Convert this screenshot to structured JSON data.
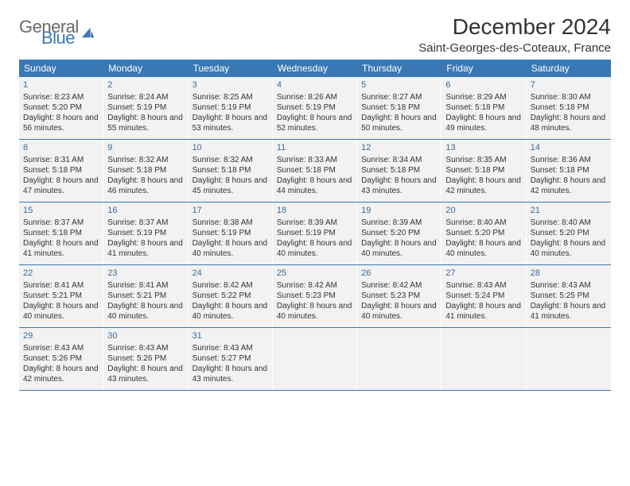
{
  "logo": {
    "general": "General",
    "blue": "Blue"
  },
  "title": "December 2024",
  "location": "Saint-Georges-des-Coteaux, France",
  "weekdays": [
    "Sunday",
    "Monday",
    "Tuesday",
    "Wednesday",
    "Thursday",
    "Friday",
    "Saturday"
  ],
  "header_bg": "#3a78b5",
  "cell_bg": "#f2f2f2",
  "weeks": [
    [
      {
        "n": "1",
        "sr": "8:23 AM",
        "ss": "5:20 PM",
        "dh": "8",
        "dm": "56"
      },
      {
        "n": "2",
        "sr": "8:24 AM",
        "ss": "5:19 PM",
        "dh": "8",
        "dm": "55"
      },
      {
        "n": "3",
        "sr": "8:25 AM",
        "ss": "5:19 PM",
        "dh": "8",
        "dm": "53"
      },
      {
        "n": "4",
        "sr": "8:26 AM",
        "ss": "5:19 PM",
        "dh": "8",
        "dm": "52"
      },
      {
        "n": "5",
        "sr": "8:27 AM",
        "ss": "5:18 PM",
        "dh": "8",
        "dm": "50"
      },
      {
        "n": "6",
        "sr": "8:29 AM",
        "ss": "5:18 PM",
        "dh": "8",
        "dm": "49"
      },
      {
        "n": "7",
        "sr": "8:30 AM",
        "ss": "5:18 PM",
        "dh": "8",
        "dm": "48"
      }
    ],
    [
      {
        "n": "8",
        "sr": "8:31 AM",
        "ss": "5:18 PM",
        "dh": "8",
        "dm": "47"
      },
      {
        "n": "9",
        "sr": "8:32 AM",
        "ss": "5:18 PM",
        "dh": "8",
        "dm": "46"
      },
      {
        "n": "10",
        "sr": "8:32 AM",
        "ss": "5:18 PM",
        "dh": "8",
        "dm": "45"
      },
      {
        "n": "11",
        "sr": "8:33 AM",
        "ss": "5:18 PM",
        "dh": "8",
        "dm": "44"
      },
      {
        "n": "12",
        "sr": "8:34 AM",
        "ss": "5:18 PM",
        "dh": "8",
        "dm": "43"
      },
      {
        "n": "13",
        "sr": "8:35 AM",
        "ss": "5:18 PM",
        "dh": "8",
        "dm": "42"
      },
      {
        "n": "14",
        "sr": "8:36 AM",
        "ss": "5:18 PM",
        "dh": "8",
        "dm": "42"
      }
    ],
    [
      {
        "n": "15",
        "sr": "8:37 AM",
        "ss": "5:18 PM",
        "dh": "8",
        "dm": "41"
      },
      {
        "n": "16",
        "sr": "8:37 AM",
        "ss": "5:19 PM",
        "dh": "8",
        "dm": "41"
      },
      {
        "n": "17",
        "sr": "8:38 AM",
        "ss": "5:19 PM",
        "dh": "8",
        "dm": "40"
      },
      {
        "n": "18",
        "sr": "8:39 AM",
        "ss": "5:19 PM",
        "dh": "8",
        "dm": "40"
      },
      {
        "n": "19",
        "sr": "8:39 AM",
        "ss": "5:20 PM",
        "dh": "8",
        "dm": "40"
      },
      {
        "n": "20",
        "sr": "8:40 AM",
        "ss": "5:20 PM",
        "dh": "8",
        "dm": "40"
      },
      {
        "n": "21",
        "sr": "8:40 AM",
        "ss": "5:20 PM",
        "dh": "8",
        "dm": "40"
      }
    ],
    [
      {
        "n": "22",
        "sr": "8:41 AM",
        "ss": "5:21 PM",
        "dh": "8",
        "dm": "40"
      },
      {
        "n": "23",
        "sr": "8:41 AM",
        "ss": "5:21 PM",
        "dh": "8",
        "dm": "40"
      },
      {
        "n": "24",
        "sr": "8:42 AM",
        "ss": "5:22 PM",
        "dh": "8",
        "dm": "40"
      },
      {
        "n": "25",
        "sr": "8:42 AM",
        "ss": "5:23 PM",
        "dh": "8",
        "dm": "40"
      },
      {
        "n": "26",
        "sr": "8:42 AM",
        "ss": "5:23 PM",
        "dh": "8",
        "dm": "40"
      },
      {
        "n": "27",
        "sr": "8:43 AM",
        "ss": "5:24 PM",
        "dh": "8",
        "dm": "41"
      },
      {
        "n": "28",
        "sr": "8:43 AM",
        "ss": "5:25 PM",
        "dh": "8",
        "dm": "41"
      }
    ],
    [
      {
        "n": "29",
        "sr": "8:43 AM",
        "ss": "5:26 PM",
        "dh": "8",
        "dm": "42"
      },
      {
        "n": "30",
        "sr": "8:43 AM",
        "ss": "5:26 PM",
        "dh": "8",
        "dm": "43"
      },
      {
        "n": "31",
        "sr": "8:43 AM",
        "ss": "5:27 PM",
        "dh": "8",
        "dm": "43"
      },
      null,
      null,
      null,
      null
    ]
  ],
  "labels": {
    "sunrise": "Sunrise:",
    "sunset": "Sunset:",
    "daylight_prefix": "Daylight:",
    "hours_word": "hours",
    "and_word": "and",
    "minutes_word": "minutes."
  }
}
